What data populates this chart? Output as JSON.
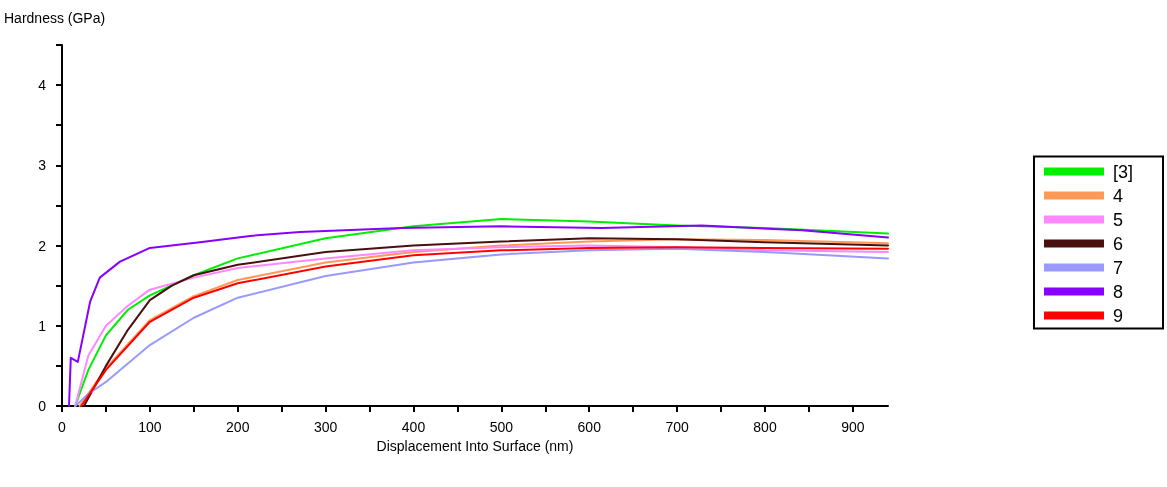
{
  "chart_data": {
    "type": "line",
    "xlabel": "Displacement Into Surface (nm)",
    "ylabel": "Hardness (GPa)",
    "xlim": [
      0,
      940
    ],
    "ylim": [
      0,
      4.5
    ],
    "xticks": [
      0,
      {
        "value": 50,
        "label": null
      },
      100,
      {
        "value": 150,
        "label": null
      },
      200,
      {
        "value": 250,
        "label": null
      },
      300,
      {
        "value": 350,
        "label": null
      },
      400,
      {
        "value": 450,
        "label": null
      },
      500,
      {
        "value": 550,
        "label": null
      },
      600,
      {
        "value": 650,
        "label": null
      },
      700,
      {
        "value": 750,
        "label": null
      },
      800,
      {
        "value": 850,
        "label": null
      },
      900
    ],
    "yticks": [
      0,
      {
        "value": 0.5,
        "label": null
      },
      1,
      {
        "value": 1.5,
        "label": null
      },
      2,
      {
        "value": 2.5,
        "label": null
      },
      3,
      {
        "value": 3.5,
        "label": null
      },
      4,
      {
        "value": 4.5,
        "label": null
      }
    ],
    "grid": false,
    "legend": "right",
    "marker": "none",
    "line_style": "solid",
    "series": [
      {
        "name": "[3]",
        "color": "#00ee00",
        "x": [
          15,
          30,
          50,
          75,
          100,
          150,
          200,
          300,
          400,
          500,
          600,
          700,
          800,
          940
        ],
        "values": [
          0,
          0.45,
          0.88,
          1.2,
          1.38,
          1.63,
          1.84,
          2.09,
          2.24,
          2.33,
          2.3,
          2.25,
          2.22,
          2.15
        ]
      },
      {
        "name": "4",
        "color": "#ff9955",
        "x": [
          20,
          50,
          100,
          150,
          200,
          300,
          400,
          500,
          600,
          700,
          800,
          940
        ],
        "values": [
          0,
          0.47,
          1.07,
          1.37,
          1.57,
          1.79,
          1.92,
          2.0,
          2.05,
          2.08,
          2.07,
          2.03
        ]
      },
      {
        "name": "5",
        "color": "#ff88ff",
        "x": [
          15,
          30,
          50,
          75,
          100,
          150,
          200,
          300,
          400,
          500,
          600,
          700,
          800,
          940
        ],
        "values": [
          0,
          0.63,
          1.0,
          1.25,
          1.45,
          1.6,
          1.72,
          1.84,
          1.94,
          1.98,
          2.0,
          1.98,
          1.94,
          1.92
        ]
      },
      {
        "name": "6",
        "color": "#4a1010",
        "x": [
          25,
          50,
          75,
          100,
          125,
          150,
          200,
          300,
          400,
          500,
          600,
          700,
          800,
          940
        ],
        "values": [
          0,
          0.5,
          0.95,
          1.32,
          1.5,
          1.63,
          1.76,
          1.92,
          2.0,
          2.05,
          2.09,
          2.08,
          2.04,
          2.0
        ]
      },
      {
        "name": "7",
        "color": "#9999ff",
        "x": [
          15,
          30,
          50,
          100,
          150,
          200,
          300,
          400,
          500,
          600,
          700,
          800,
          940
        ],
        "values": [
          0,
          0.15,
          0.3,
          0.76,
          1.1,
          1.35,
          1.62,
          1.79,
          1.89,
          1.94,
          1.96,
          1.92,
          1.84
        ]
      },
      {
        "name": "8",
        "color": "#8800ff",
        "x": [
          8,
          10,
          18,
          32,
          43,
          66,
          100,
          157,
          214,
          271,
          386,
          500,
          614,
          728,
          842,
          940
        ],
        "values": [
          0,
          0.6,
          0.55,
          1.3,
          1.6,
          1.8,
          1.97,
          2.04,
          2.12,
          2.17,
          2.22,
          2.24,
          2.22,
          2.25,
          2.19,
          2.1
        ]
      },
      {
        "name": "9",
        "color": "#ff0000",
        "x": [
          22,
          50,
          100,
          150,
          200,
          300,
          400,
          500,
          600,
          700,
          800,
          940
        ],
        "values": [
          0,
          0.45,
          1.05,
          1.35,
          1.53,
          1.74,
          1.88,
          1.94,
          1.97,
          1.98,
          1.97,
          1.96
        ]
      }
    ]
  }
}
